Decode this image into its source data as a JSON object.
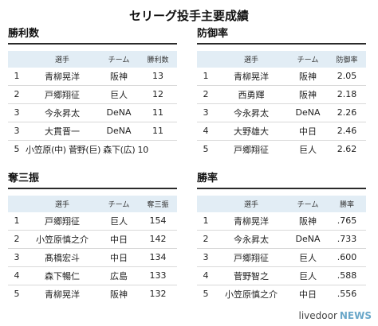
{
  "title": "セリーグ投手主要成績",
  "wins": {
    "title": "勝利数",
    "headers": [
      "選手",
      "チーム",
      "勝利数"
    ],
    "rows": [
      {
        "rank": "1",
        "name": "青柳晃洋",
        "team": "阪神",
        "value": "13"
      },
      {
        "rank": "2",
        "name": "戸郷翔征",
        "team": "巨人",
        "value": "12"
      },
      {
        "rank": "3",
        "name": "今永昇太",
        "team": "DeNA",
        "value": "11"
      },
      {
        "rank": "3",
        "name": "大貫晋一",
        "team": "DeNA",
        "value": "11"
      },
      {
        "rank": "5",
        "combined": "小笠原(中) 菅野(巨) 森下(広) 10"
      }
    ]
  },
  "era": {
    "title": "防御率",
    "headers": [
      "選手",
      "チーム",
      "防御率"
    ],
    "rows": [
      {
        "rank": "1",
        "name": "青柳晃洋",
        "team": "阪神",
        "value": "2.05"
      },
      {
        "rank": "2",
        "name": "西勇輝",
        "team": "阪神",
        "value": "2.18"
      },
      {
        "rank": "3",
        "name": "今永昇太",
        "team": "DeNA",
        "value": "2.26"
      },
      {
        "rank": "4",
        "name": "大野雄大",
        "team": "中日",
        "value": "2.46"
      },
      {
        "rank": "5",
        "name": "戸郷翔征",
        "team": "巨人",
        "value": "2.62"
      }
    ]
  },
  "strikeouts": {
    "title": "奪三振",
    "headers": [
      "選手",
      "チーム",
      "奪三振"
    ],
    "rows": [
      {
        "rank": "1",
        "name": "戸郷翔征",
        "team": "巨人",
        "value": "154"
      },
      {
        "rank": "2",
        "name": "小笠原慎之介",
        "team": "中日",
        "value": "142"
      },
      {
        "rank": "3",
        "name": "髙橋宏斗",
        "team": "中日",
        "value": "134"
      },
      {
        "rank": "4",
        "name": "森下暢仁",
        "team": "広島",
        "value": "133"
      },
      {
        "rank": "5",
        "name": "青柳晃洋",
        "team": "阪神",
        "value": "132"
      }
    ]
  },
  "winpct": {
    "title": "勝率",
    "headers": [
      "選手",
      "チーム",
      "勝率"
    ],
    "rows": [
      {
        "rank": "1",
        "name": "青柳晃洋",
        "team": "阪神",
        "value": ".765"
      },
      {
        "rank": "2",
        "name": "今永昇太",
        "team": "DeNA",
        "value": ".733"
      },
      {
        "rank": "3",
        "name": "戸郷翔征",
        "team": "巨人",
        "value": ".600"
      },
      {
        "rank": "4",
        "name": "菅野智之",
        "team": "巨人",
        "value": ".588"
      },
      {
        "rank": "5",
        "name": "小笠原慎之介",
        "team": "中日",
        "value": ".556"
      }
    ]
  },
  "footer": {
    "brand": "livedoor",
    "news": "NEWS"
  }
}
